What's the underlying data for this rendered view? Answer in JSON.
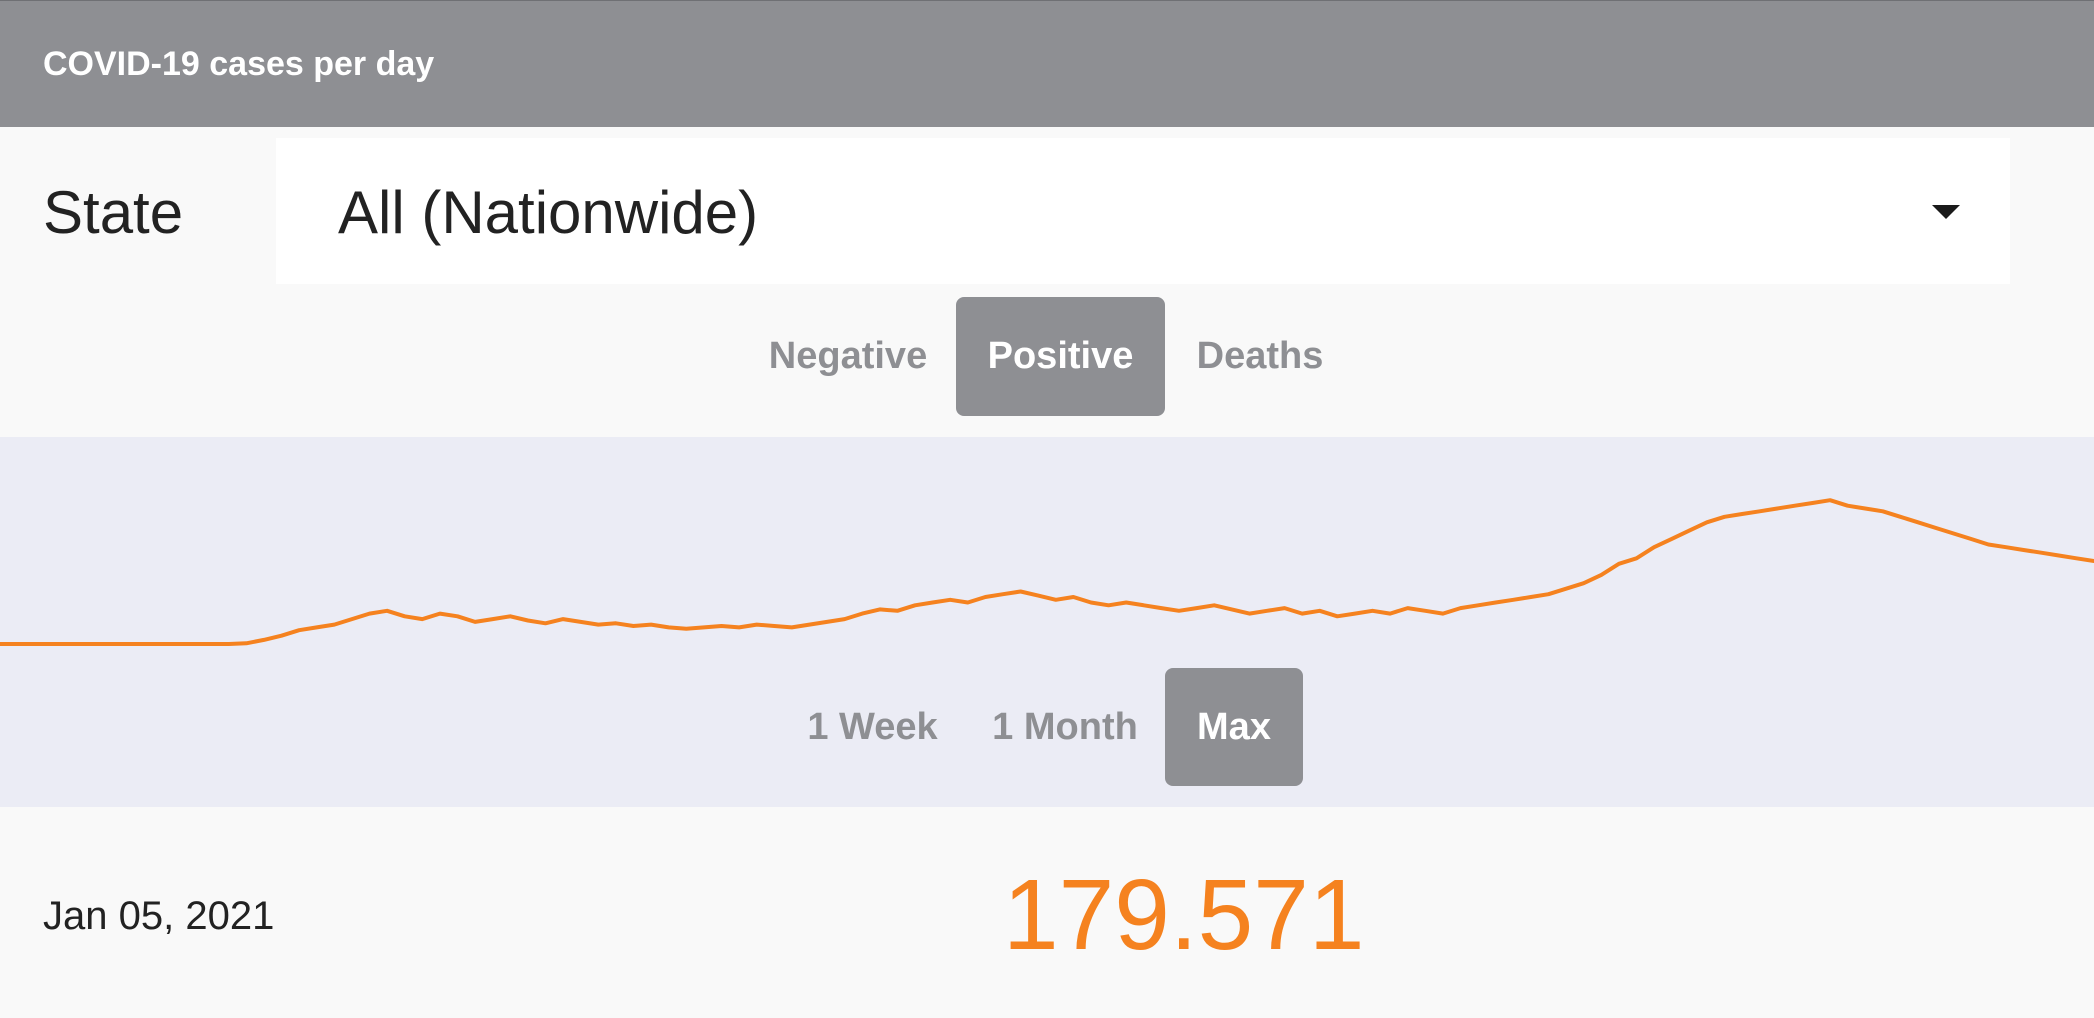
{
  "app_bar": {
    "title": "COVID-19 cases per day"
  },
  "filter": {
    "label": "State",
    "selected": "All (Nationwide)"
  },
  "metric_tabs": [
    {
      "label": "Negative",
      "active": false
    },
    {
      "label": "Positive",
      "active": true
    },
    {
      "label": "Deaths",
      "active": false
    }
  ],
  "range_tabs": [
    {
      "label": "1 Week",
      "active": false
    },
    {
      "label": "1 Month",
      "active": false
    },
    {
      "label": "Max",
      "active": true
    }
  ],
  "selection": {
    "date": "Jan 05, 2021",
    "value": "179.571"
  },
  "colors": {
    "line": "#f5821f",
    "app_bar": "#8e8f93",
    "chart_bg": "#ebecf5"
  },
  "chart_data": {
    "type": "line",
    "series": [
      {
        "values": [
          0,
          0,
          0,
          0,
          0,
          0,
          0,
          0,
          0,
          0,
          0,
          0,
          0,
          0,
          0.5,
          3,
          6,
          10,
          12,
          14,
          18,
          22,
          24,
          20,
          18,
          22,
          20,
          16,
          18,
          20,
          17,
          15,
          18,
          16,
          14,
          15,
          13,
          14,
          12,
          11,
          12,
          13,
          12,
          14,
          13,
          12,
          14,
          16,
          18,
          22,
          25,
          24,
          28,
          30,
          32,
          30,
          34,
          36,
          38,
          35,
          32,
          34,
          30,
          28,
          30,
          28,
          26,
          24,
          26,
          28,
          25,
          22,
          24,
          26,
          22,
          24,
          20,
          22,
          24,
          22,
          26,
          24,
          22,
          26,
          28,
          30,
          32,
          34,
          36,
          40,
          44,
          50,
          58,
          62,
          70,
          76,
          82,
          88,
          92,
          94,
          96,
          98,
          100,
          102,
          104,
          100,
          98,
          96,
          92,
          88,
          84,
          80,
          76,
          72,
          70,
          68,
          66,
          64,
          62,
          60
        ]
      }
    ],
    "ylim": [
      0,
      115
    ],
    "grid": false,
    "legend": "none"
  }
}
